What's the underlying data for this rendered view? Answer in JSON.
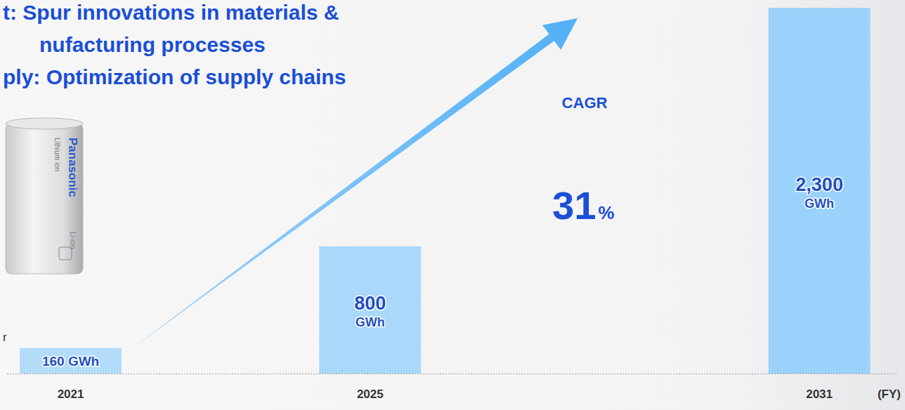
{
  "chart_data": {
    "type": "bar",
    "x": [
      2021,
      2025,
      2031
    ],
    "values": [
      160,
      800,
      2300
    ],
    "value_labels": [
      "160 GWh",
      "800 GWh",
      "2,300 GWh"
    ],
    "data_labels": true,
    "colors": [
      "#b3dcfb",
      "#a9d8fb",
      "#9ad2fb"
    ],
    "xlim": [
      2020.15,
      2032.05
    ],
    "xticks": [
      2021,
      2025,
      2031
    ],
    "ylim": [
      0,
      2350
    ],
    "tick_labels": "x",
    "x_label": "(FY)",
    "annotations": {
      "headline": [
        "t: Spur innovations in materials &",
        "nufacturing processes",
        "ply: Optimization of supply chains"
      ],
      "cell": [
        "Panasonic",
        "Lithium ion",
        "Li-ion"
      ],
      "cagr": {
        "label": "CAGR",
        "value": "31",
        "unit": "%"
      },
      "fragment": "r"
    }
  }
}
